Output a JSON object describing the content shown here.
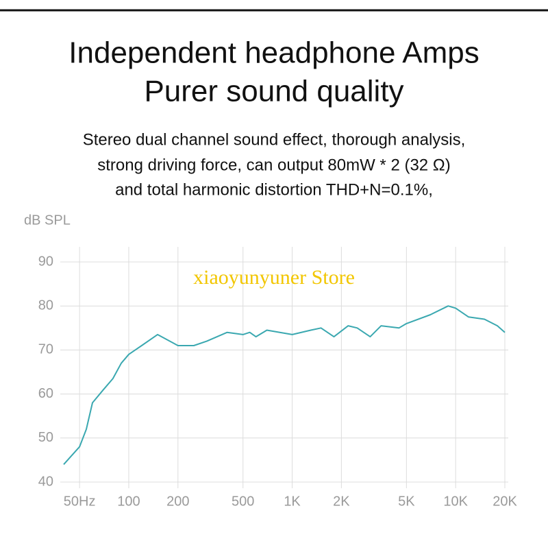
{
  "chart_data": {
    "type": "line",
    "title": [
      "Independent headphone Amps",
      "Purer sound quality"
    ],
    "subtitle": [
      "Stereo dual channel sound effect, thorough analysis,",
      "strong driving force, can output 80mW * 2 (32 Ω)",
      "and total harmonic distortion THD+N=0.1%,"
    ],
    "y_label": "dB SPL",
    "annotation": "xiaoyunyuner Store",
    "x_scale": "log",
    "xlim": [
      40,
      20000
    ],
    "xticks": [
      {
        "value": 50,
        "label": "50Hz"
      },
      100,
      200,
      500,
      {
        "value": 1000,
        "label": "1K"
      },
      {
        "value": 2000,
        "label": "2K"
      },
      {
        "value": 5000,
        "label": "5K"
      },
      {
        "value": 10000,
        "label": "10K"
      },
      {
        "value": 20000,
        "label": "20K"
      }
    ],
    "ylim": [
      40,
      90
    ],
    "yticks": [
      40,
      50,
      60,
      70,
      80,
      90
    ],
    "grid": true,
    "x": [
      40,
      50,
      55,
      60,
      70,
      80,
      90,
      100,
      120,
      150,
      200,
      250,
      300,
      400,
      500,
      550,
      600,
      700,
      1000,
      1300,
      1500,
      1800,
      2200,
      2500,
      3000,
      3500,
      4500,
      5000,
      7000,
      9000,
      10000,
      12000,
      15000,
      18000,
      20000
    ],
    "series": [
      {
        "color": "#3aa8b0",
        "values": [
          44,
          48,
          52,
          58,
          61,
          63.5,
          67,
          69,
          71,
          73.5,
          71,
          71,
          72,
          74,
          73.5,
          74,
          73,
          74.5,
          73.5,
          74.5,
          75,
          73,
          75.5,
          75,
          73,
          75.5,
          75,
          76,
          78,
          80,
          79.5,
          77.5,
          77,
          75.5,
          74
        ]
      }
    ]
  }
}
